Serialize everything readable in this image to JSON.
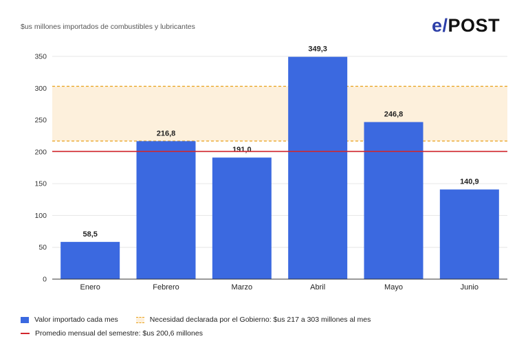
{
  "subtitle": "$us millones importados de combustibles y lubricantes",
  "logo": {
    "e": "e",
    "slash": "/",
    "rest": "POST"
  },
  "colors": {
    "bar": "#3b69e0",
    "range_fill": "#fdf0dc",
    "range_border": "#e8a11a",
    "avg_line": "#d1262c",
    "grid": "#e6e6e6"
  },
  "chart_data": {
    "type": "bar",
    "categories": [
      "Enero",
      "Febrero",
      "Marzo",
      "Abril",
      "Mayo",
      "Junio"
    ],
    "values": [
      58.5,
      216.8,
      191.0,
      349.3,
      246.8,
      140.9
    ],
    "value_labels": [
      "58,5",
      "216,8",
      "191,0",
      "349,3",
      "246,8",
      "140,9"
    ],
    "yticks": [
      0,
      50,
      100,
      150,
      200,
      250,
      300,
      350
    ],
    "ylim": [
      0,
      350
    ],
    "grid": true,
    "range_band": [
      217,
      303
    ],
    "average_line": 200.6,
    "title": "",
    "xlabel": "",
    "ylabel": ""
  },
  "legend": {
    "bars": "Valor importado cada mes",
    "range": "Necesidad declarada por el Gobierno: $us 217 a 303 millones al mes",
    "average": "Promedio mensual del semestre: $us 200,6 millones"
  }
}
